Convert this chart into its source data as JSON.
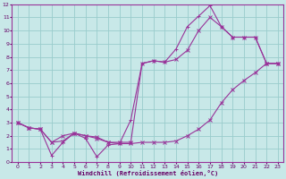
{
  "background_color": "#c8e8e8",
  "grid_color": "#99cccc",
  "line_color": "#993399",
  "line1_x": [
    0,
    1,
    2,
    3,
    4,
    5,
    6,
    7,
    8,
    9,
    10,
    11,
    12,
    13,
    14,
    15,
    16,
    17,
    18,
    19,
    20,
    21,
    22,
    23
  ],
  "line1_y": [
    3.0,
    2.6,
    2.5,
    1.5,
    2.0,
    2.2,
    2.0,
    1.9,
    1.5,
    1.4,
    1.4,
    1.5,
    1.5,
    1.5,
    1.6,
    2.0,
    2.5,
    3.2,
    4.5,
    5.5,
    6.2,
    6.8,
    7.5,
    7.5
  ],
  "line2_x": [
    0,
    1,
    2,
    3,
    4,
    5,
    6,
    7,
    8,
    9,
    10,
    11,
    12,
    13,
    14,
    15,
    16,
    17,
    18,
    19,
    20,
    21,
    22,
    23
  ],
  "line2_y": [
    3.0,
    2.6,
    2.5,
    0.5,
    1.5,
    2.2,
    1.8,
    0.4,
    1.3,
    1.4,
    3.2,
    7.5,
    7.7,
    7.6,
    8.6,
    10.3,
    11.1,
    11.9,
    10.3,
    9.5,
    9.5,
    9.5,
    7.5,
    7.5
  ],
  "line3_x": [
    0,
    1,
    2,
    3,
    4,
    5,
    6,
    7,
    8,
    9,
    10,
    11,
    12,
    13,
    14,
    15,
    16,
    17,
    18,
    19,
    20,
    21,
    22,
    23
  ],
  "line3_y": [
    3.0,
    2.6,
    2.5,
    1.5,
    1.6,
    2.2,
    2.0,
    1.8,
    1.5,
    1.5,
    1.5,
    7.5,
    7.7,
    7.6,
    7.8,
    8.5,
    10.0,
    11.0,
    10.3,
    9.5,
    9.5,
    9.5,
    7.5,
    7.5
  ],
  "xlim": [
    -0.5,
    23.5
  ],
  "ylim": [
    0,
    12
  ],
  "xticks": [
    0,
    1,
    2,
    3,
    4,
    5,
    6,
    7,
    8,
    9,
    10,
    11,
    12,
    13,
    14,
    15,
    16,
    17,
    18,
    19,
    20,
    21,
    22,
    23
  ],
  "yticks": [
    0,
    1,
    2,
    3,
    4,
    5,
    6,
    7,
    8,
    9,
    10,
    11,
    12
  ],
  "xlabel": "Windchill (Refroidissement éolien,°C)",
  "tick_color": "#660066",
  "spine_color": "#993399"
}
